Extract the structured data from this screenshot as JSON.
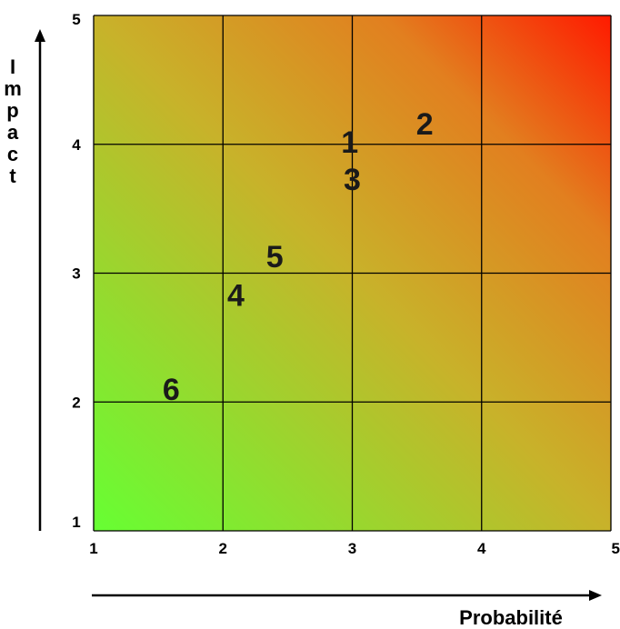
{
  "chart_data": {
    "type": "scatter",
    "title": "",
    "xlabel": "Probabilité",
    "ylabel": "Impact",
    "xlim": [
      1,
      5
    ],
    "ylim": [
      1,
      5
    ],
    "x_ticks": [
      "1",
      "2",
      "3",
      "4",
      "5"
    ],
    "y_ticks": [
      "1",
      "2",
      "3",
      "4",
      "5"
    ],
    "grid": true,
    "background": "gradient from green (low probability, low impact) to red (high probability, high impact)",
    "colors": {
      "low": "#66ff33",
      "mid": "#e07a1e",
      "high": "#ff1a00"
    },
    "points": [
      {
        "label": "1",
        "x": 2.98,
        "y": 4.02
      },
      {
        "label": "2",
        "x": 3.56,
        "y": 4.16
      },
      {
        "label": "3",
        "x": 3.0,
        "y": 3.73
      },
      {
        "label": "4",
        "x": 2.1,
        "y": 2.83
      },
      {
        "label": "5",
        "x": 2.4,
        "y": 3.13
      },
      {
        "label": "6",
        "x": 1.6,
        "y": 2.1
      }
    ]
  }
}
